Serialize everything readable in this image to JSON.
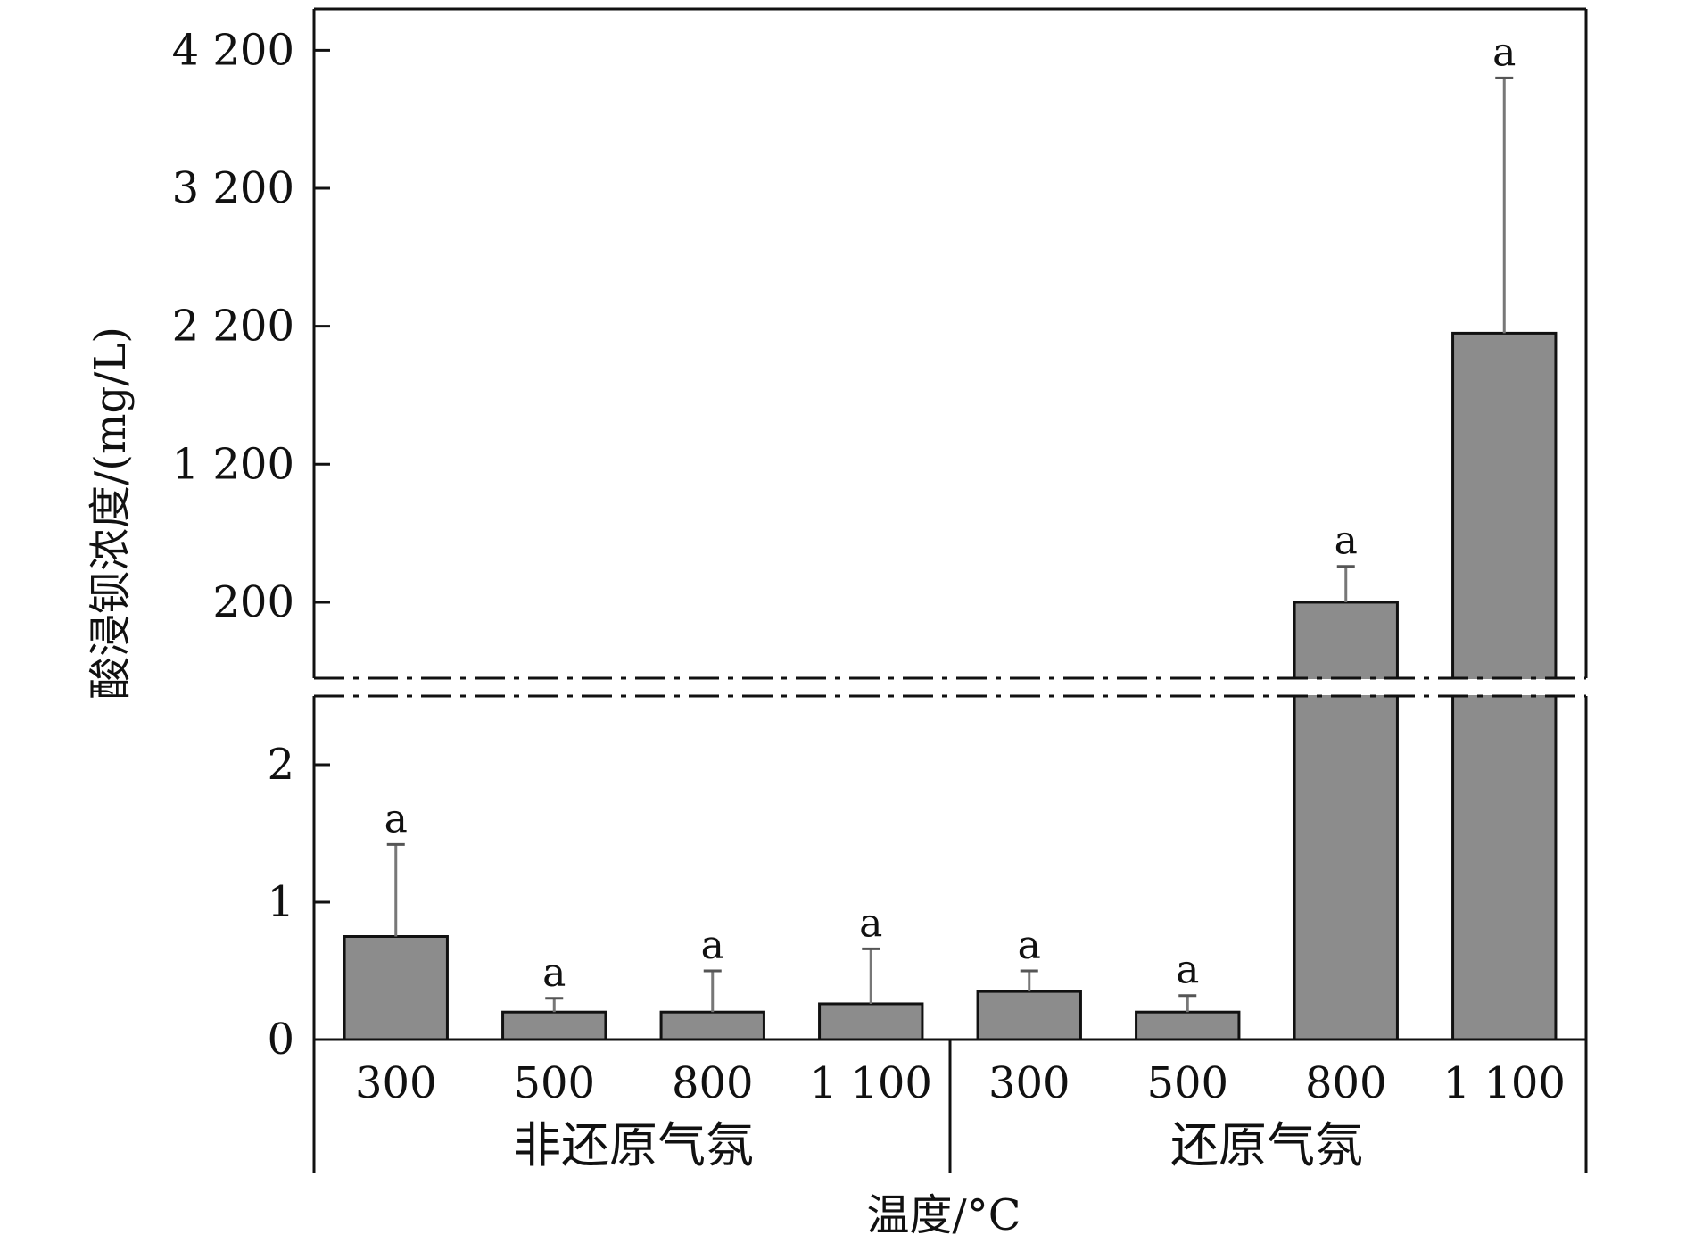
{
  "chart_data": {
    "type": "bar",
    "ylabel": "酸浸钡浓度/(mg/L)",
    "xlabel": "温度/°C",
    "groups": [
      {
        "name": "非还原气氛",
        "categories": [
          "300",
          "500",
          "800",
          "1 100"
        ],
        "values": [
          0.75,
          0.2,
          0.2,
          0.26
        ],
        "errors": [
          0.67,
          0.1,
          0.3,
          0.4
        ],
        "sig": [
          "a",
          "a",
          "a",
          "a"
        ]
      },
      {
        "name": "还原气氛",
        "categories": [
          "300",
          "500",
          "800",
          "1 100"
        ],
        "values": [
          0.35,
          0.2,
          200,
          2150
        ],
        "errors": [
          0.15,
          0.12,
          260,
          1850
        ],
        "sig": [
          "a",
          "a",
          "a",
          "a"
        ]
      }
    ],
    "lower_axis": {
      "ylim": [
        0,
        2.5
      ],
      "ticks": [
        0,
        1,
        2
      ],
      "tick_labels": [
        "0",
        "1",
        "2"
      ]
    },
    "upper_axis": {
      "ylim": [
        -350,
        4500
      ],
      "ticks": [
        200,
        1200,
        2200,
        3200,
        4200
      ],
      "tick_labels": [
        "200",
        "1 200",
        "2 200",
        "3 200",
        "4 200"
      ]
    },
    "bar_color": "#8c8c8c",
    "axis_break": true,
    "grid": false,
    "legend": "none"
  }
}
